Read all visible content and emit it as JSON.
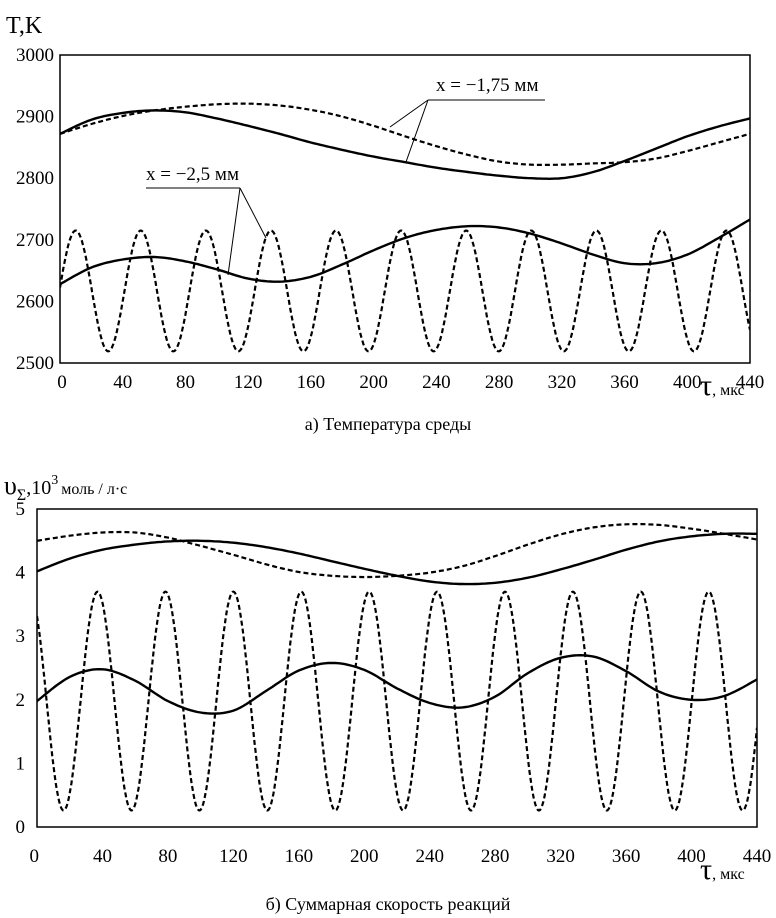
{
  "chart_data": [
    {
      "type": "line",
      "caption": "а)  Температура среды",
      "ylabel_main": "T",
      "ylabel_unit": "K",
      "xlabel_main": "τ",
      "xlabel_unit": "мкс",
      "xlim": [
        0,
        440
      ],
      "ylim": [
        2500,
        3000
      ],
      "x_ticks": [
        0,
        40,
        80,
        120,
        160,
        200,
        240,
        280,
        320,
        360,
        400,
        440
      ],
      "y_ticks": [
        2500,
        2600,
        2700,
        2800,
        2900,
        3000
      ],
      "grid": false,
      "annotations": [
        {
          "text": "x = −1,75 мм",
          "series": [
            "x=-1.75 solid",
            "x=-1.75 dashed"
          ]
        },
        {
          "text": "x = −2,5 мм",
          "series": [
            "x=-2.5 solid",
            "x=-2.5 dashed"
          ]
        }
      ],
      "series": [
        {
          "style": "solid",
          "x": [
            0,
            20,
            40,
            60,
            80,
            100,
            120,
            140,
            160,
            180,
            200,
            220,
            240,
            260,
            280,
            300,
            320,
            340,
            360,
            380,
            400,
            420,
            440
          ],
          "y": [
            2872,
            2895,
            2906,
            2910,
            2907,
            2897,
            2885,
            2872,
            2858,
            2846,
            2835,
            2826,
            2817,
            2810,
            2804,
            2800,
            2800,
            2810,
            2828,
            2848,
            2868,
            2884,
            2897
          ]
        },
        {
          "style": "dashed",
          "x": [
            0,
            20,
            40,
            60,
            80,
            100,
            120,
            140,
            160,
            180,
            200,
            220,
            240,
            260,
            280,
            300,
            320,
            340,
            360,
            380,
            400,
            420,
            440
          ],
          "y": [
            2872,
            2888,
            2901,
            2910,
            2916,
            2920,
            2921,
            2918,
            2911,
            2900,
            2885,
            2868,
            2852,
            2838,
            2827,
            2822,
            2822,
            2824,
            2826,
            2832,
            2844,
            2858,
            2872
          ]
        },
        {
          "style": "solid",
          "x": [
            0,
            20,
            40,
            60,
            80,
            100,
            120,
            140,
            160,
            180,
            200,
            220,
            240,
            260,
            280,
            300,
            320,
            340,
            360,
            380,
            400,
            420,
            440
          ],
          "y": [
            2628,
            2655,
            2668,
            2672,
            2665,
            2652,
            2637,
            2632,
            2640,
            2660,
            2683,
            2703,
            2716,
            2722,
            2720,
            2710,
            2694,
            2676,
            2662,
            2662,
            2676,
            2703,
            2733
          ]
        },
        {
          "style": "dashed",
          "function": "sine",
          "mean": 2617,
          "amplitude": 98,
          "period": 41.5,
          "phase_peak_x": 10,
          "x_range": [
            0,
            440
          ]
        }
      ]
    },
    {
      "type": "line",
      "caption": "б)  Суммарная скорость реакций",
      "ylabel_main": "υ",
      "ylabel_sub": "Σ",
      "ylabel_mid": ",10",
      "ylabel_sup": "3",
      "ylabel_unit": "моль / л·с",
      "xlabel_main": "τ",
      "xlabel_unit": "мкс",
      "xlim": [
        0,
        440
      ],
      "ylim": [
        0,
        5
      ],
      "x_ticks": [
        0,
        40,
        80,
        120,
        160,
        200,
        240,
        280,
        320,
        360,
        400,
        440
      ],
      "y_ticks": [
        0,
        1,
        2,
        3,
        4,
        5
      ],
      "grid": false,
      "series": [
        {
          "style": "solid",
          "x": [
            0,
            20,
            40,
            60,
            80,
            100,
            120,
            140,
            160,
            180,
            200,
            220,
            240,
            260,
            280,
            300,
            320,
            340,
            360,
            380,
            400,
            420,
            440
          ],
          "y": [
            4.02,
            4.22,
            4.36,
            4.44,
            4.49,
            4.5,
            4.47,
            4.4,
            4.3,
            4.18,
            4.06,
            3.95,
            3.86,
            3.82,
            3.84,
            3.92,
            4.05,
            4.2,
            4.36,
            4.49,
            4.57,
            4.61,
            4.61
          ]
        },
        {
          "style": "dashed",
          "x": [
            0,
            20,
            40,
            60,
            80,
            100,
            120,
            140,
            160,
            180,
            200,
            220,
            240,
            260,
            280,
            300,
            320,
            340,
            360,
            380,
            400,
            420,
            440
          ],
          "y": [
            4.5,
            4.58,
            4.63,
            4.63,
            4.55,
            4.42,
            4.28,
            4.13,
            4.01,
            3.95,
            3.93,
            3.95,
            4.0,
            4.1,
            4.26,
            4.44,
            4.6,
            4.71,
            4.76,
            4.75,
            4.69,
            4.61,
            4.52
          ]
        },
        {
          "style": "solid",
          "x": [
            0,
            20,
            40,
            60,
            80,
            100,
            120,
            140,
            160,
            180,
            200,
            220,
            240,
            260,
            280,
            300,
            320,
            340,
            360,
            380,
            400,
            420,
            440
          ],
          "y": [
            1.98,
            2.36,
            2.48,
            2.3,
            1.98,
            1.8,
            1.83,
            2.14,
            2.46,
            2.58,
            2.47,
            2.18,
            1.95,
            1.88,
            2.05,
            2.42,
            2.66,
            2.68,
            2.45,
            2.13,
            2.0,
            2.06,
            2.32
          ]
        },
        {
          "style": "dashed",
          "function": "sine",
          "mean": 1.98,
          "amplitude": 1.72,
          "period": 41.5,
          "phase_peak_x": 37,
          "x_range": [
            0,
            440
          ]
        }
      ]
    }
  ]
}
